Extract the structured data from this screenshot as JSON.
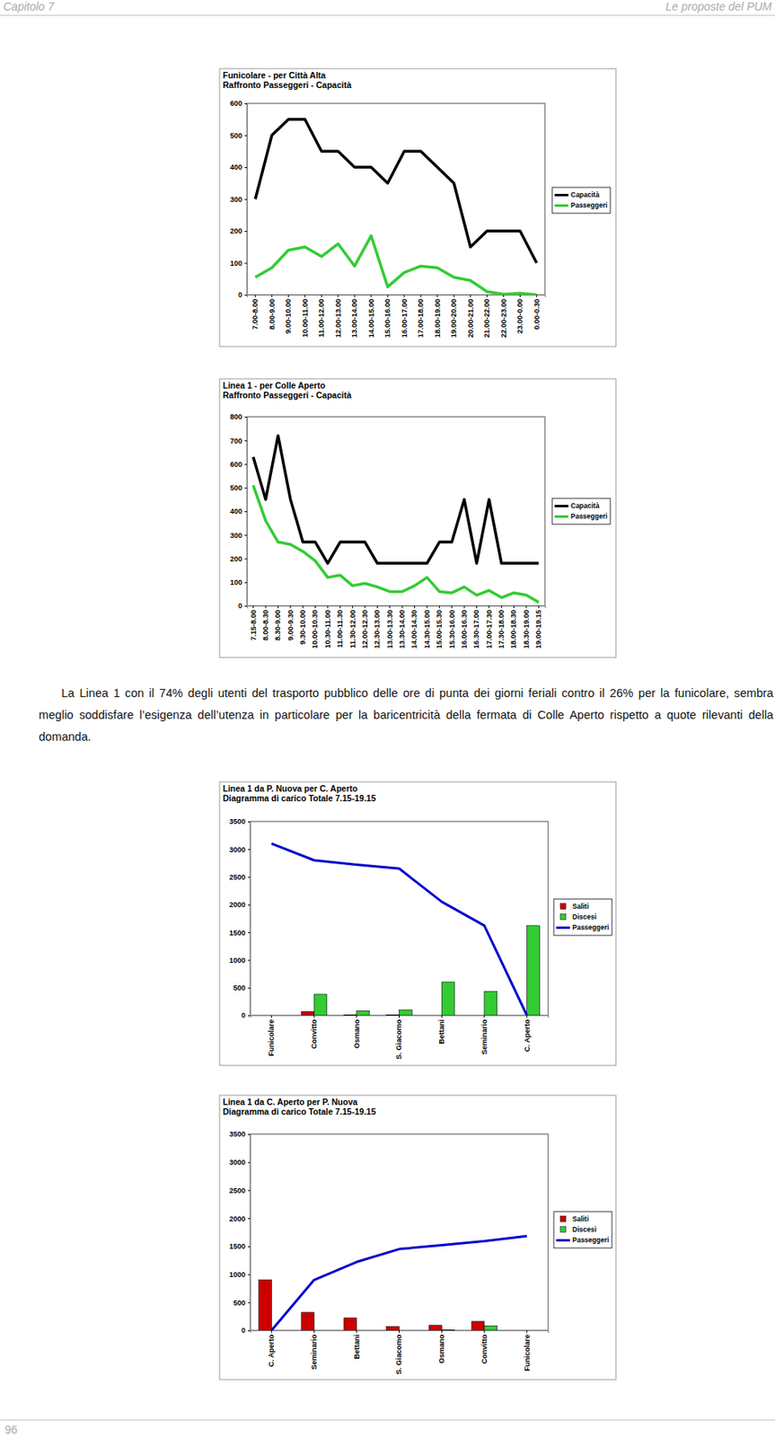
{
  "header": {
    "left": "Capitolo 7",
    "right": "Le proposte del PUM"
  },
  "chart_data": [
    {
      "type": "line",
      "title": "Funicolare - per Città Alta",
      "subtitle": "Raffronto Passeggeri - Capacità",
      "categories": [
        "7.00-8.00",
        "8.00-9.00",
        "9.00-10.00",
        "10.00-11.00",
        "11.00-12.00",
        "12.00-13.00",
        "13.00-14.00",
        "14.00-15.00",
        "15.00-16.00",
        "16.00-17.00",
        "17.00-18.00",
        "18.00-19.00",
        "19.00-20.00",
        "20.00-21.00",
        "21.00-22.00",
        "22.00-23.00",
        "23.00-0.00",
        "0.00-0.30"
      ],
      "series": [
        {
          "name": "Capacità",
          "color": "#000000",
          "values": [
            300,
            500,
            550,
            550,
            450,
            450,
            400,
            400,
            350,
            450,
            450,
            400,
            350,
            150,
            200,
            200,
            200,
            100
          ]
        },
        {
          "name": "Passeggeri",
          "color": "#33cc33",
          "values": [
            55,
            85,
            140,
            150,
            120,
            160,
            90,
            185,
            25,
            70,
            90,
            85,
            55,
            45,
            10,
            2,
            5,
            0
          ]
        }
      ],
      "ylim": [
        0,
        600
      ],
      "yticks": [
        0,
        100,
        200,
        300,
        400,
        500,
        600
      ],
      "legend": "right",
      "grid": false
    },
    {
      "type": "line",
      "title": "Linea 1 - per Colle Aperto",
      "subtitle": "Raffronto Passeggeri - Capacità",
      "categories": [
        "7.15-8.00",
        "8.00-8.30",
        "8.30-9.00",
        "9.00-9.30",
        "9.30-10.00",
        "10.00-10.30",
        "10.30-11.00",
        "11.00-11.30",
        "11.30-12.00",
        "12.00-12.30",
        "12.30-13.00",
        "13.00-13.30",
        "13.30-14.00",
        "14.00-14.30",
        "14.30-15.00",
        "15.00-15.30",
        "15.30-16.00",
        "16.00-16.30",
        "16.30-17.00",
        "17.00-17.30",
        "17.30-18.00",
        "18.00-18.30",
        "18.30-19.00",
        "19.00-19.15"
      ],
      "series": [
        {
          "name": "Capacità",
          "color": "#000000",
          "values": [
            630,
            450,
            720,
            450,
            270,
            270,
            180,
            270,
            270,
            270,
            180,
            180,
            180,
            180,
            180,
            270,
            270,
            450,
            180,
            450,
            180,
            180,
            180,
            180
          ]
        },
        {
          "name": "Passeggeri",
          "color": "#33cc33",
          "values": [
            510,
            360,
            270,
            260,
            230,
            190,
            120,
            130,
            85,
            95,
            80,
            60,
            60,
            85,
            120,
            60,
            55,
            80,
            45,
            65,
            35,
            55,
            45,
            15
          ]
        }
      ],
      "ylim": [
        0,
        800
      ],
      "yticks": [
        0,
        100,
        200,
        300,
        400,
        500,
        600,
        700,
        800
      ],
      "legend": "right",
      "grid": false
    },
    {
      "type": "bar",
      "title": "Linea 1 da P. Nuova per C. Aperto",
      "subtitle": "Diagramma di carico Totale 7.15-19.15",
      "categories": [
        "Funicolare",
        "Convitto",
        "Osmano",
        "S. Giacomo",
        "Bettani",
        "Seminario",
        "C. Aperto"
      ],
      "series": [
        {
          "name": "Saliti",
          "type": "bar",
          "color": "#cc0000",
          "values": [
            0,
            70,
            10,
            10,
            0,
            0,
            0
          ]
        },
        {
          "name": "Discesi",
          "type": "bar",
          "color": "#33cc33",
          "values": [
            0,
            380,
            80,
            100,
            600,
            430,
            1620
          ]
        },
        {
          "name": "Passeggeri",
          "type": "line",
          "color": "#0000cc",
          "values": [
            3100,
            2800,
            2720,
            2650,
            2050,
            1620,
            0
          ]
        }
      ],
      "ylim": [
        0,
        3500
      ],
      "yticks": [
        0,
        500,
        1000,
        1500,
        2000,
        2500,
        3000,
        3500
      ],
      "legend": "right",
      "grid": false
    },
    {
      "type": "bar",
      "title": "Linea 1 da C. Aperto per P. Nuova",
      "subtitle": "Diagramma di carico Totale 7.15-19.15",
      "categories": [
        "C. Aperto",
        "Seminario",
        "Bettani",
        "S. Giacomo",
        "Osmano",
        "Convitto",
        "Funicolare"
      ],
      "series": [
        {
          "name": "Saliti",
          "type": "bar",
          "color": "#cc0000",
          "values": [
            900,
            320,
            220,
            70,
            90,
            160,
            0
          ]
        },
        {
          "name": "Discesi",
          "type": "bar",
          "color": "#33cc33",
          "values": [
            0,
            0,
            0,
            0,
            10,
            80,
            0
          ]
        },
        {
          "name": "Passeggeri",
          "type": "line",
          "color": "#0000cc",
          "values": [
            0,
            900,
            1220,
            1450,
            1520,
            1590,
            1680
          ]
        }
      ],
      "ylim": [
        0,
        3500
      ],
      "yticks": [
        0,
        500,
        1000,
        1500,
        2000,
        2500,
        3000,
        3500
      ],
      "legend": "right",
      "grid": false
    }
  ],
  "text": "La Linea 1 con il 74% degli utenti del trasporto pubblico delle ore di punta dei giorni feriali contro il 26% per la funicolare, sembra meglio soddisfare l’esigenza dell’utenza in particolare per la baricentricità della fermata di Colle Aperto rispetto a quote rilevanti della domanda.",
  "page_number": "96"
}
